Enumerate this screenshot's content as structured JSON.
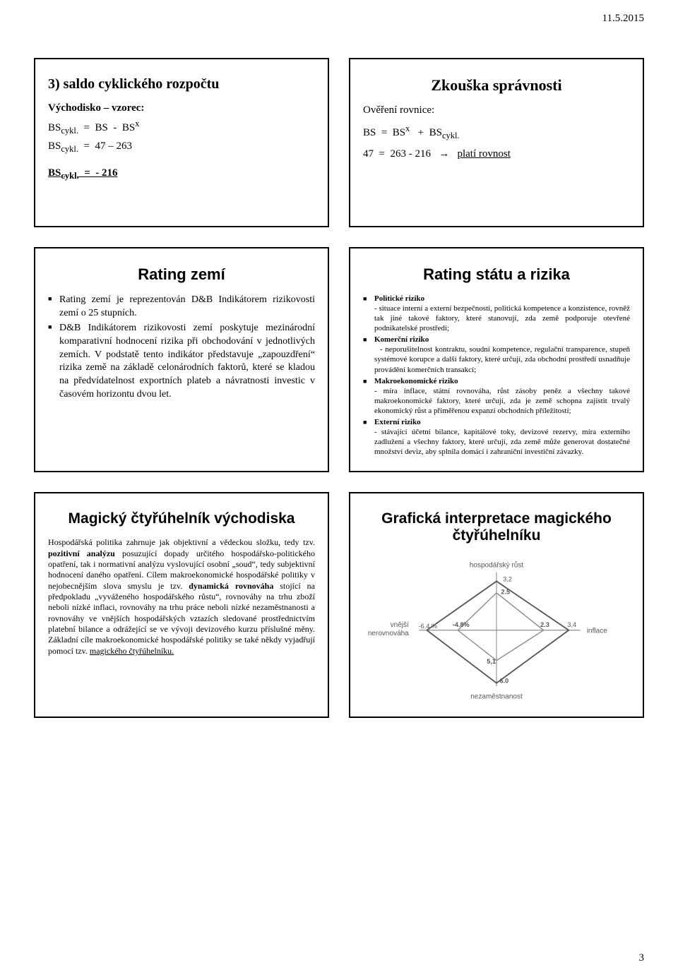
{
  "header": {
    "date": "11.5.2015",
    "page_number": "3"
  },
  "panels": {
    "saldo": {
      "title": "3) saldo cyklického rozpočtu",
      "line1": "Východisko – vzorec:",
      "eq1_html": "BS<sub>cykl.</sub> &nbsp;=&nbsp; BS &nbsp;-&nbsp; BS<sup>x</sup>",
      "eq2_html": "BS<sub>cykl.</sub> &nbsp;=&nbsp; 47 – 263",
      "eq3_html": "<u>BS<sub>cykl.</sub> &nbsp;= &nbsp;- 216</u>"
    },
    "zkouska": {
      "title": "Zkouška správnosti",
      "line1": "Ověření rovnice:",
      "eq1_html": "BS &nbsp;=&nbsp; BS<sup>x</sup> &nbsp;&nbsp;+&nbsp; BS<sub>cykl.</sub>",
      "eq2_html": "47 &nbsp;=&nbsp; 263 - 216 &nbsp;&nbsp;→&nbsp;&nbsp; <u>platí rovnost</u>"
    },
    "rating_zemi": {
      "title": "Rating zemí",
      "items": [
        "Rating zemí je reprezentován D&B Indikátorem rizikovosti zemí o 25 stupních.",
        "D&B Indikátorem rizikovosti zemí poskytuje mezinárodní komparativní hodnocení rizika při obchodování v jednotlivých zemích. V podstatě tento indikátor představuje „zapouzdření“ rizika země na základě celonárodních faktorů, které se kladou na předvídatelnost exportních plateb a návratnosti investic v časovém horizontu dvou let."
      ]
    },
    "rating_statu": {
      "title": "Rating státu a rizika",
      "items": [
        {
          "head": "Politické riziko",
          "body": "- situace interní a externí bezpečnosti, politická kompetence a konzistence, rovněž tak jiné takové faktory, které stanovují, zda země podporuje otevřené podnikatelské prostředí;"
        },
        {
          "head": "Komerční riziko",
          "body": "- neporušitelnost kontraktu, soudní kompetence, regulační transparence, stupeň systémové korupce a další faktory, které určují, zda obchodní prostředí usnadňuje provádění komerčních transakcí;"
        },
        {
          "head": "Makroekonomické riziko",
          "body": "- míra inflace, státní rovnováha, růst zásoby peněz a všechny takové makroekonomické faktory, které určují, zda je země schopna zajistit trvalý ekonomický růst a přiměřenou expanzi obchodních příležitostí;"
        },
        {
          "head": "Externí riziko",
          "body": "- stávající účetní bilance, kapitálové toky, devizové rezervy, míra externího zadlužení a všechny faktory, které určují, zda země může generovat dostatečné množství deviz, aby splnila domácí i zahraniční investiční závazky."
        }
      ]
    },
    "magicky": {
      "title": "Magický čtyřúhelník východiska",
      "body": "Hospodářská politika zahrnuje jak objektivní a vědeckou složku, tedy tzv. <b>pozitivní analýzu</b> posuzující dopady určitého hospodářsko-politického opatření, tak i normativní analýzu vyslovující osobní „soud“, tedy subjektivní hodnocení daného opatření. Cílem makroekonomické hospodářské politiky v nejobecnějším slova smyslu je tzv. <b>dynamická rovnováha</b> stojící na předpokladu „vyváženého hospodářského růstu“, rovnováhy na trhu zboží neboli nízké inflaci, rovnováhy na trhu práce neboli nízké nezaměstnanosti a rovnováhy ve vnějších hospodářských vztazích sledované prostřednictvím platební bilance a odrážející se ve vývoji devizového kurzu příslušné měny. Základní cíle makroekonomické hospodářské politiky se také někdy vyjadřují pomocí tzv. <u>magického čtyřúhelníku.</u>"
    },
    "grafika": {
      "title": "Grafická interpretace magického čtyřúhelníku",
      "chart": {
        "axis_labels": {
          "top": "hospodářský růst",
          "right": "inflace",
          "bottom": "nezaměstnanost",
          "left": "vnější nerovnováha"
        },
        "scale_values_top": [
          "3,2",
          "2.5"
        ],
        "scale_left": "-6.4 %",
        "scale_left_inner": "-4.8%",
        "scale_right": [
          "2.3",
          "3,4"
        ],
        "scale_bottom_inner": "5,1",
        "scale_bottom": "6.0",
        "colors": {
          "axis": "#777777",
          "poly_outer": "#555555",
          "poly_inner": "#888888",
          "text": "#555555",
          "background": "#ffffff"
        }
      }
    }
  }
}
